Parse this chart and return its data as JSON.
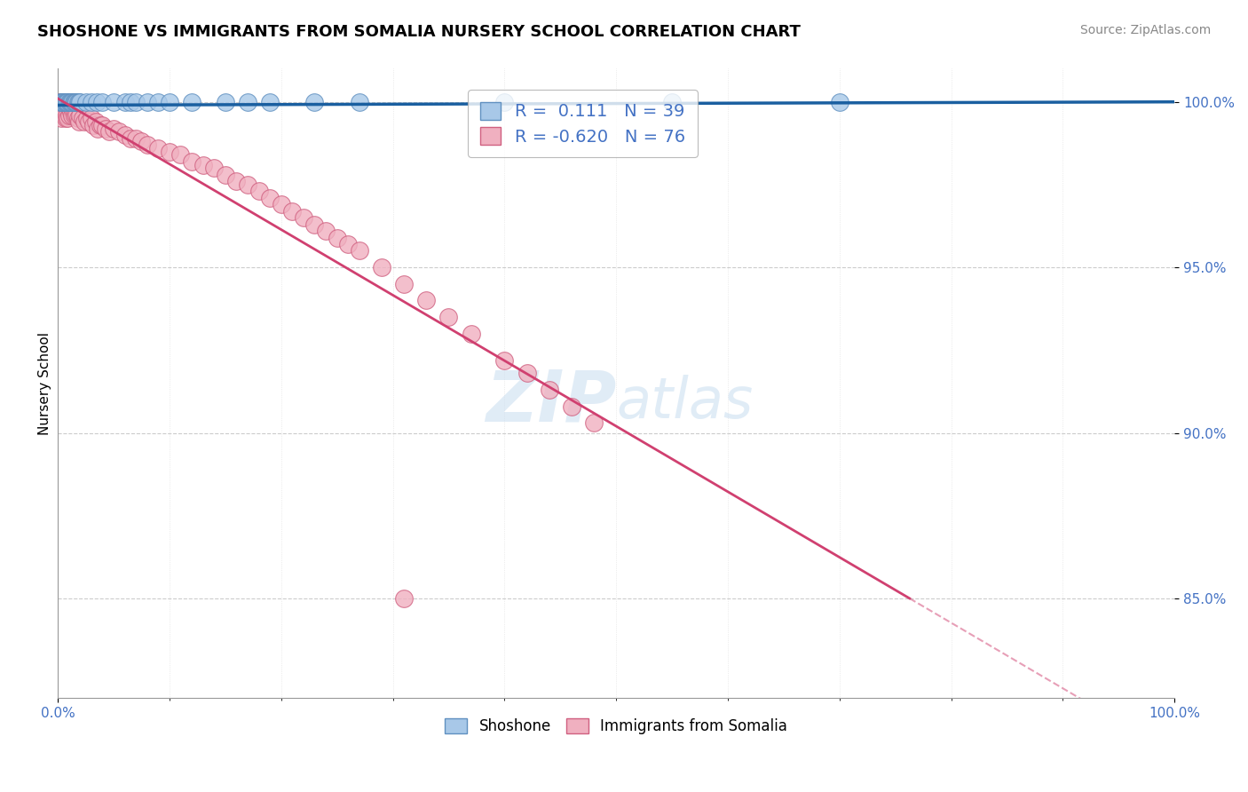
{
  "title": "SHOSHONE VS IMMIGRANTS FROM SOMALIA NURSERY SCHOOL CORRELATION CHART",
  "source": "Source: ZipAtlas.com",
  "ylabel": "Nursery School",
  "watermark_zip": "ZIP",
  "watermark_atlas": "atlas",
  "shoshone": {
    "label": "Shoshone",
    "R": 0.111,
    "N": 39,
    "color": "#a8c8e8",
    "edge_color": "#6090c0",
    "x": [
      0.002,
      0.003,
      0.004,
      0.005,
      0.006,
      0.007,
      0.008,
      0.009,
      0.01,
      0.011,
      0.012,
      0.013,
      0.014,
      0.015,
      0.016,
      0.017,
      0.018,
      0.019,
      0.02,
      0.025,
      0.03,
      0.035,
      0.04,
      0.05,
      0.06,
      0.065,
      0.07,
      0.08,
      0.09,
      0.1,
      0.12,
      0.15,
      0.17,
      0.19,
      0.23,
      0.27,
      0.4,
      0.55,
      0.7
    ],
    "y": [
      1.0,
      1.0,
      1.0,
      1.0,
      1.0,
      1.0,
      1.0,
      1.0,
      1.0,
      1.0,
      1.0,
      1.0,
      1.0,
      1.0,
      1.0,
      1.0,
      1.0,
      1.0,
      1.0,
      1.0,
      1.0,
      1.0,
      1.0,
      1.0,
      1.0,
      1.0,
      1.0,
      1.0,
      1.0,
      1.0,
      1.0,
      1.0,
      1.0,
      1.0,
      1.0,
      1.0,
      1.0,
      1.0,
      1.0
    ]
  },
  "somalia": {
    "label": "Immigrants from Somalia",
    "R": -0.62,
    "N": 76,
    "color": "#f0b0c0",
    "edge_color": "#d06080",
    "x": [
      0.002,
      0.003,
      0.003,
      0.004,
      0.004,
      0.005,
      0.005,
      0.006,
      0.006,
      0.007,
      0.007,
      0.008,
      0.008,
      0.009,
      0.009,
      0.01,
      0.01,
      0.011,
      0.012,
      0.013,
      0.014,
      0.015,
      0.016,
      0.017,
      0.018,
      0.019,
      0.02,
      0.022,
      0.024,
      0.026,
      0.028,
      0.03,
      0.032,
      0.034,
      0.036,
      0.038,
      0.04,
      0.043,
      0.046,
      0.05,
      0.055,
      0.06,
      0.065,
      0.07,
      0.075,
      0.08,
      0.09,
      0.1,
      0.11,
      0.12,
      0.13,
      0.14,
      0.15,
      0.16,
      0.17,
      0.18,
      0.19,
      0.2,
      0.21,
      0.22,
      0.23,
      0.24,
      0.25,
      0.26,
      0.27,
      0.29,
      0.31,
      0.33,
      0.35,
      0.37,
      0.4,
      0.42,
      0.44,
      0.46,
      0.48,
      0.31
    ],
    "y": [
      1.0,
      1.0,
      0.995,
      1.0,
      0.998,
      1.0,
      0.997,
      1.0,
      0.996,
      0.999,
      0.995,
      1.0,
      0.996,
      0.999,
      0.995,
      1.0,
      0.996,
      0.998,
      0.997,
      0.996,
      0.997,
      0.996,
      0.997,
      0.996,
      0.995,
      0.994,
      0.996,
      0.995,
      0.994,
      0.995,
      0.994,
      0.995,
      0.993,
      0.994,
      0.992,
      0.993,
      0.993,
      0.992,
      0.991,
      0.992,
      0.991,
      0.99,
      0.989,
      0.989,
      0.988,
      0.987,
      0.986,
      0.985,
      0.984,
      0.982,
      0.981,
      0.98,
      0.978,
      0.976,
      0.975,
      0.973,
      0.971,
      0.969,
      0.967,
      0.965,
      0.963,
      0.961,
      0.959,
      0.957,
      0.955,
      0.95,
      0.945,
      0.94,
      0.935,
      0.93,
      0.922,
      0.918,
      0.913,
      0.908,
      0.903,
      0.85
    ]
  },
  "xlim": [
    0.0,
    1.0
  ],
  "ylim": [
    0.82,
    1.01
  ],
  "yticks": [
    0.85,
    0.9,
    0.95,
    1.0
  ],
  "ytick_labels": [
    "85.0%",
    "90.0%",
    "95.0%",
    "100.0%"
  ],
  "xticks": [
    0.0,
    1.0
  ],
  "xtick_labels": [
    "0.0%",
    "100.0%"
  ],
  "blue_line_color": "#1a5fa0",
  "pink_line_color": "#d04070",
  "grid_color": "#cccccc",
  "background_color": "#ffffff",
  "text_color_blue": "#4472C4",
  "title_fontsize": 13,
  "axis_label_fontsize": 11,
  "tick_fontsize": 11,
  "source_fontsize": 10,
  "legend_R_color": "#4472C4"
}
